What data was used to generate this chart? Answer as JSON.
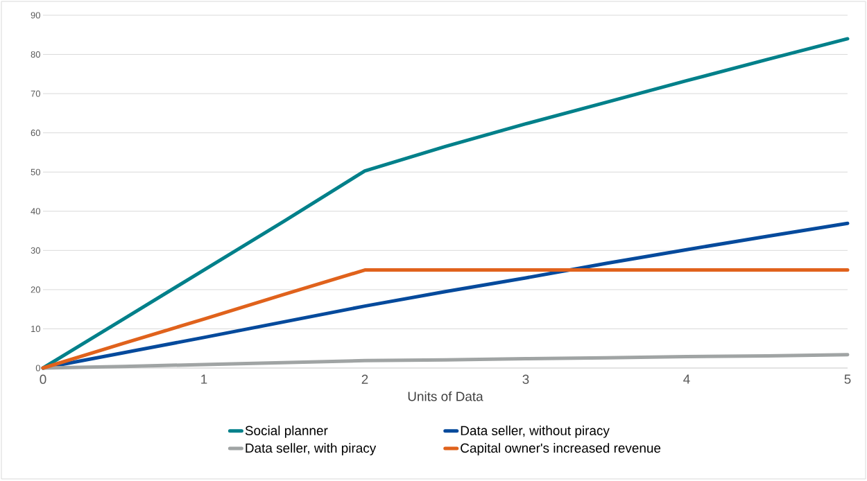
{
  "chart_data": {
    "type": "line",
    "xlabel": "Units of Data",
    "x": [
      0,
      0.5,
      1,
      1.5,
      2,
      2.5,
      3,
      3.5,
      4,
      4.5,
      5
    ],
    "series": [
      {
        "name": "Social planner",
        "color": "#00808a",
        "values": [
          0,
          12.5,
          25,
          37.5,
          50.3,
          56.5,
          62.3,
          67.8,
          73.3,
          78.7,
          84
        ]
      },
      {
        "name": "Data seller, without piracy",
        "color": "#054a9c",
        "values": [
          0,
          3.9,
          7.8,
          11.8,
          15.8,
          19.5,
          23,
          26.7,
          30.2,
          33.6,
          36.9
        ]
      },
      {
        "name": "Data seller, with piracy",
        "color": "#a0a4a4",
        "values": [
          0,
          0.4,
          0.9,
          1.4,
          1.9,
          2.1,
          2.4,
          2.6,
          2.9,
          3.1,
          3.4
        ]
      },
      {
        "name": "Capital owner's increased revenue",
        "color": "#e0621c",
        "values": [
          0,
          6.3,
          12.5,
          18.8,
          25,
          25,
          25,
          25,
          25,
          25,
          25
        ]
      }
    ],
    "xlim": [
      0,
      5
    ],
    "ylim": [
      0,
      90
    ],
    "xticks": [
      0,
      1,
      2,
      3,
      4,
      5
    ],
    "yticks": [
      0,
      10,
      20,
      30,
      40,
      50,
      60,
      70,
      80,
      90
    ],
    "grid": "y",
    "legend": "bottom"
  }
}
